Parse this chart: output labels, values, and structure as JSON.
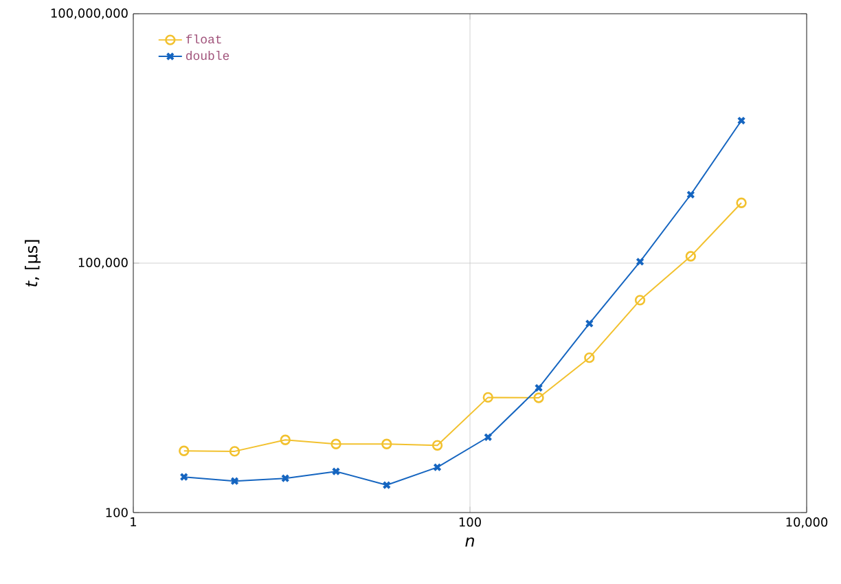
{
  "chart_data": {
    "type": "line",
    "xlabel": "n",
    "ylabel": "*t*, [μs]",
    "log": "xy",
    "grid": true,
    "legend": "top left",
    "xlim": [
      1,
      10000
    ],
    "ylim": [
      100,
      100000000
    ],
    "xticks": [
      1,
      {
        "value": 100,
        "label": "100"
      },
      {
        "value": 10000,
        "label": "10,000"
      }
    ],
    "yticks": [
      100,
      {
        "value": 100000,
        "label": "100,000"
      },
      {
        "value": 100000000,
        "label": "100,000,000"
      }
    ],
    "x": [
      2,
      4,
      8,
      16,
      32,
      64,
      128,
      256,
      512,
      1024,
      2048,
      4096
    ],
    "series": [
      {
        "name": "float",
        "color": "#f2c12e",
        "marker": "circle",
        "values": [
          552,
          545,
          748,
          667,
          667,
          643,
          2427,
          2400,
          7280,
          35900,
          121000,
          531000
        ]
      },
      {
        "name": "double",
        "color": "#1565c0",
        "marker": "cross",
        "values": [
          268,
          239,
          258,
          312,
          214,
          350,
          807,
          3160,
          18800,
          104000,
          667000,
          5180000
        ]
      }
    ]
  }
}
